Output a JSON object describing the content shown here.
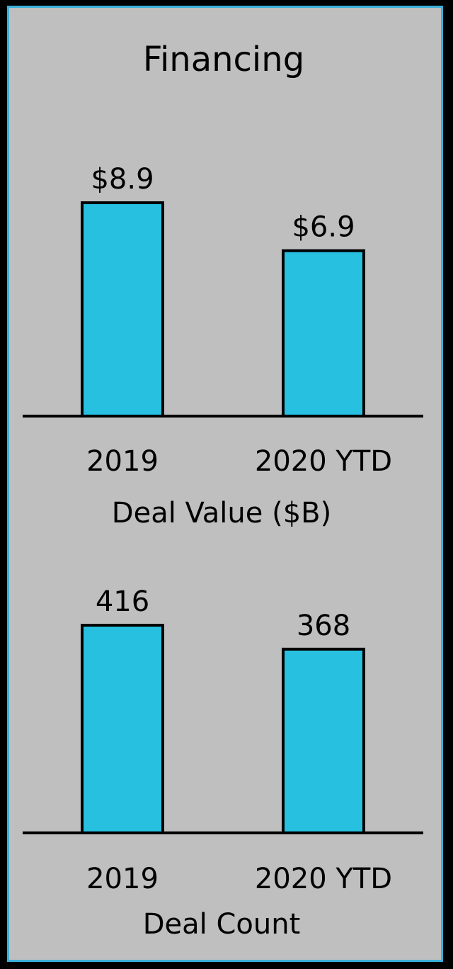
{
  "title": "Financing",
  "colors": {
    "bar": "#27c0e0",
    "stroke": "#000000",
    "panel": "#bfbfbf",
    "border": "#3ab0d8"
  },
  "chart_data": [
    {
      "type": "bar",
      "categories": [
        "2019",
        "2020 YTD"
      ],
      "values": [
        8.9,
        6.9
      ],
      "value_labels": [
        "$8.9",
        "$6.9"
      ],
      "xlabel": "Deal Value ($B)",
      "ylim": [
        0,
        10
      ]
    },
    {
      "type": "bar",
      "categories": [
        "2019",
        "2020 YTD"
      ],
      "values": [
        416,
        368
      ],
      "value_labels": [
        "416",
        "368"
      ],
      "xlabel": "Deal Count",
      "ylim": [
        0,
        467
      ]
    }
  ]
}
